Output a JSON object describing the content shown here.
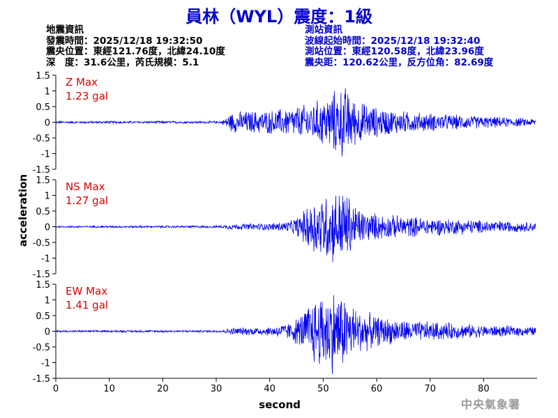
{
  "title": "員林（WYL）震度：1級",
  "earthquake_info": {
    "header": "地震資訊",
    "origin_time": "發震時間：2025/12/18 19:32:50",
    "epicenter": "震央位置：東經121.76度，北緯24.10度",
    "depth_magnitude": "深　度：31.6公里，芮氏規模：5.1"
  },
  "station_info": {
    "header": "測站資訊",
    "wave_start": "波線起始時間：2025/12/18 19:32:40",
    "station_location": "測站位置：東經120.58度，北緯23.96度",
    "distance_azimuth": "震央距：120.62公里，反方位角：82.69度"
  },
  "agency": "中央氣象署",
  "colors": {
    "trace": "#0000ee",
    "max_label": "#dd0000",
    "title": "#0000cc",
    "axis": "#000000"
  },
  "chart_data": {
    "type": "line",
    "xlabel": "second",
    "ylabel": "acceleration",
    "xlim": [
      0,
      90
    ],
    "ylim": [
      -1.5,
      1.5
    ],
    "xticks": [
      0,
      10,
      20,
      30,
      40,
      50,
      60,
      70,
      80
    ],
    "yticks": [
      -1.5,
      -1,
      -0.5,
      0,
      0.5,
      1,
      1.5
    ],
    "ytick_labels": [
      "-1.5",
      "-1",
      "-0.5",
      "0",
      "0.5",
      "1",
      "1.5"
    ],
    "grid": false,
    "panels": [
      {
        "label": "Z Max",
        "max_value": "1.23 gal",
        "envelope": [
          [
            0,
            0.04
          ],
          [
            31,
            0.04
          ],
          [
            32,
            0.2
          ],
          [
            33,
            0.35
          ],
          [
            36,
            0.38
          ],
          [
            40,
            0.4
          ],
          [
            44,
            0.5
          ],
          [
            47,
            0.6
          ],
          [
            50,
            0.8
          ],
          [
            52,
            1.05
          ],
          [
            54,
            1.23
          ],
          [
            56,
            0.75
          ],
          [
            60,
            0.5
          ],
          [
            66,
            0.35
          ],
          [
            72,
            0.28
          ],
          [
            80,
            0.2
          ],
          [
            89.7,
            0.12
          ]
        ]
      },
      {
        "label": "NS Max",
        "max_value": "1.27 gal",
        "envelope": [
          [
            0,
            0.03
          ],
          [
            31,
            0.04
          ],
          [
            33,
            0.1
          ],
          [
            40,
            0.12
          ],
          [
            44,
            0.2
          ],
          [
            46,
            0.45
          ],
          [
            48,
            0.95
          ],
          [
            50,
            1.1
          ],
          [
            52,
            1.2
          ],
          [
            54,
            1.27
          ],
          [
            56,
            0.75
          ],
          [
            58,
            0.5
          ],
          [
            62,
            0.4
          ],
          [
            70,
            0.3
          ],
          [
            80,
            0.22
          ],
          [
            89.7,
            0.15
          ]
        ]
      },
      {
        "label": "EW Max",
        "max_value": "1.41 gal",
        "envelope": [
          [
            0,
            0.03
          ],
          [
            31,
            0.04
          ],
          [
            33,
            0.12
          ],
          [
            40,
            0.15
          ],
          [
            44,
            0.3
          ],
          [
            46,
            0.6
          ],
          [
            48,
            1.1
          ],
          [
            50,
            1.3
          ],
          [
            52,
            1.41
          ],
          [
            54,
            1.2
          ],
          [
            56,
            0.8
          ],
          [
            60,
            0.5
          ],
          [
            66,
            0.35
          ],
          [
            72,
            0.3
          ],
          [
            80,
            0.2
          ],
          [
            89.7,
            0.15
          ]
        ]
      }
    ]
  }
}
